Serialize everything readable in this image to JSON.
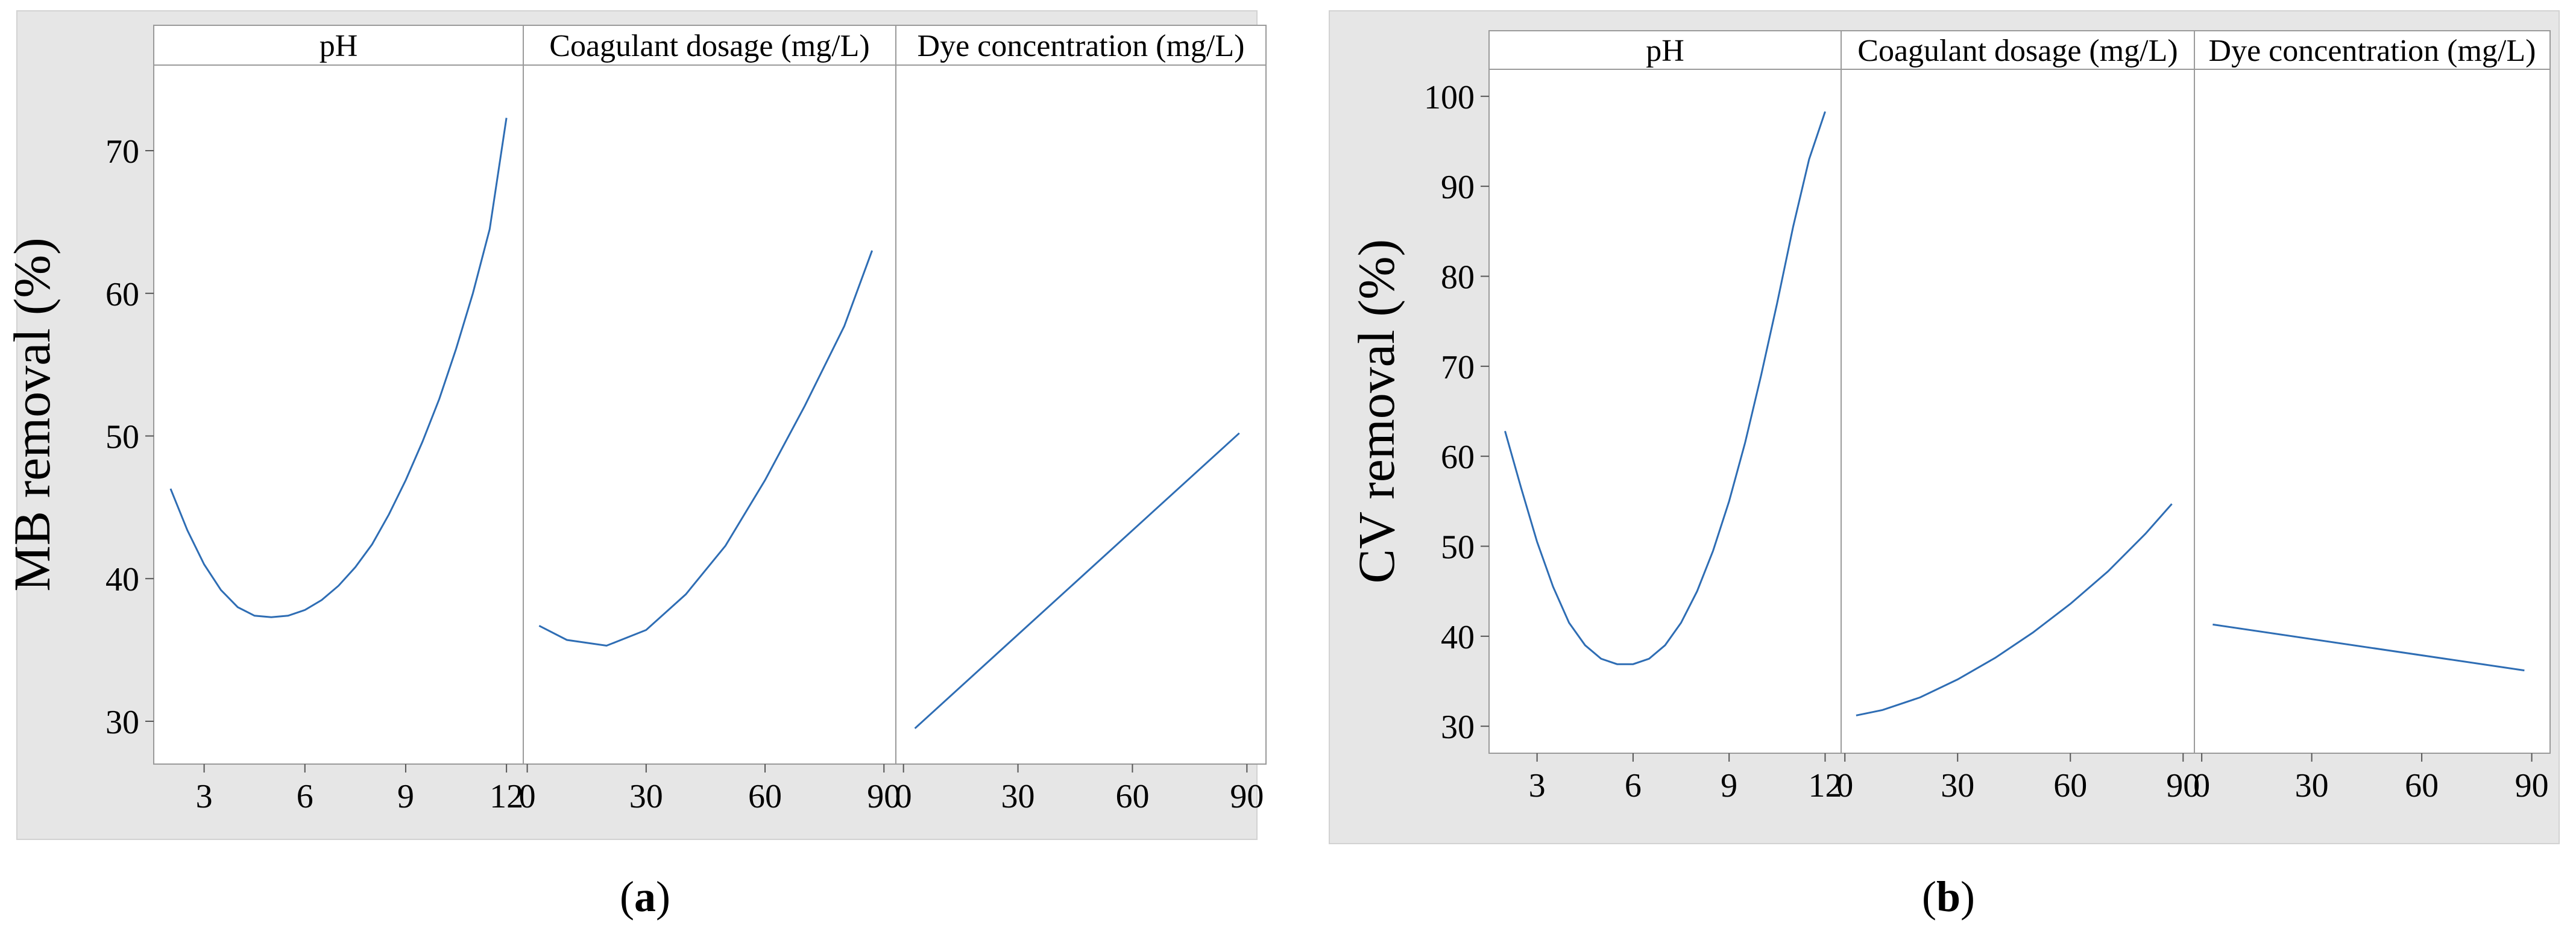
{
  "chart_data": [
    {
      "type": "line",
      "ylabel": "MB removal (%)",
      "ylim": [
        27,
        76
      ],
      "yticks": [
        30,
        40,
        50,
        60,
        70
      ],
      "caption": "a",
      "caption_open": "(",
      "caption_close": ")",
      "panels": [
        {
          "title": "pH",
          "xlim": [
            1.5,
            12.5
          ],
          "xticks": [
            "3",
            "6",
            "9",
            "12"
          ],
          "x": [
            2,
            2.5,
            3,
            3.5,
            4,
            4.5,
            5,
            5.5,
            6,
            6.5,
            7,
            7.5,
            8,
            8.5,
            9,
            9.5,
            10,
            10.5,
            11,
            11.5,
            12
          ],
          "y": [
            46.3,
            43.4,
            41.0,
            39.2,
            38.0,
            37.4,
            37.3,
            37.4,
            37.8,
            38.5,
            39.5,
            40.8,
            42.4,
            44.5,
            46.9,
            49.6,
            52.6,
            56.1,
            60.0,
            64.5,
            72.3
          ]
        },
        {
          "title": "Coagulant dosage (mg/L)",
          "xlim": [
            -1,
            93
          ],
          "xticks": [
            "0",
            "30",
            "60",
            "90"
          ],
          "x": [
            3,
            10,
            20,
            30,
            40,
            50,
            60,
            70,
            80,
            87
          ],
          "y": [
            36.7,
            35.7,
            35.3,
            36.4,
            38.9,
            42.3,
            46.9,
            52.1,
            57.7,
            63.0
          ]
        },
        {
          "title": "Dye concentration (mg/L)",
          "xlim": [
            -2,
            95
          ],
          "xticks": [
            "0",
            "30",
            "60",
            "90"
          ],
          "x": [
            3,
            88
          ],
          "y": [
            29.5,
            50.2
          ]
        }
      ]
    },
    {
      "type": "line",
      "ylabel": "CV removal (%)",
      "ylim": [
        27,
        103
      ],
      "yticks": [
        30,
        40,
        50,
        60,
        70,
        80,
        90,
        100
      ],
      "caption": "b",
      "caption_open": "(",
      "caption_close": ")",
      "panels": [
        {
          "title": "pH",
          "xlim": [
            1.5,
            12.5
          ],
          "xticks": [
            "3",
            "6",
            "9",
            "12"
          ],
          "x": [
            2,
            2.5,
            3,
            3.5,
            4,
            4.5,
            5,
            5.5,
            6,
            6.5,
            7,
            7.5,
            8,
            8.5,
            9,
            9.5,
            10,
            10.5,
            11,
            11.5,
            12
          ],
          "y": [
            62.8,
            56.5,
            50.5,
            45.5,
            41.5,
            39.0,
            37.5,
            36.9,
            36.9,
            37.5,
            39.0,
            41.5,
            45.0,
            49.5,
            55.0,
            61.5,
            69.0,
            77.0,
            85.5,
            93.0,
            98.3
          ]
        },
        {
          "title": "Coagulant dosage (mg/L)",
          "xlim": [
            -1,
            93
          ],
          "xticks": [
            "0",
            "30",
            "60",
            "90"
          ],
          "x": [
            3,
            10,
            20,
            30,
            40,
            50,
            60,
            70,
            80,
            87
          ],
          "y": [
            31.2,
            31.8,
            33.2,
            35.2,
            37.6,
            40.4,
            43.6,
            47.2,
            51.4,
            54.7
          ]
        },
        {
          "title": "Dye concentration (mg/L)",
          "xlim": [
            -2,
            95
          ],
          "xticks": [
            "0",
            "30",
            "60",
            "90"
          ],
          "x": [
            3,
            88
          ],
          "y": [
            41.3,
            36.2
          ]
        }
      ]
    }
  ]
}
